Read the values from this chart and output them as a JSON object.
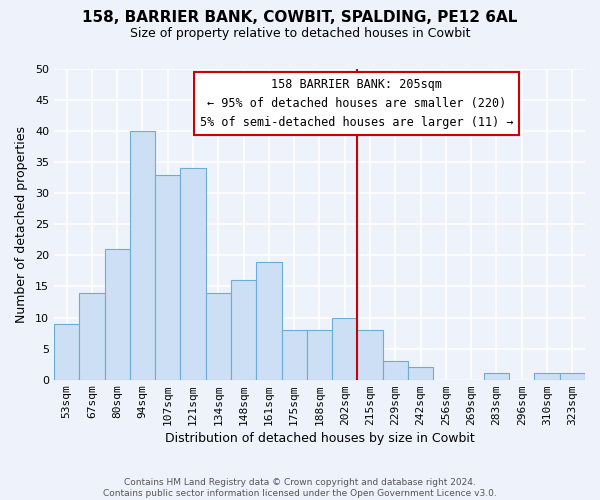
{
  "title1": "158, BARRIER BANK, COWBIT, SPALDING, PE12 6AL",
  "title2": "Size of property relative to detached houses in Cowbit",
  "xlabel": "Distribution of detached houses by size in Cowbit",
  "ylabel": "Number of detached properties",
  "footer1": "Contains HM Land Registry data © Crown copyright and database right 2024.",
  "footer2": "Contains public sector information licensed under the Open Government Licence v3.0.",
  "bar_labels": [
    "53sqm",
    "67sqm",
    "80sqm",
    "94sqm",
    "107sqm",
    "121sqm",
    "134sqm",
    "148sqm",
    "161sqm",
    "175sqm",
    "188sqm",
    "202sqm",
    "215sqm",
    "229sqm",
    "242sqm",
    "256sqm",
    "269sqm",
    "283sqm",
    "296sqm",
    "310sqm",
    "323sqm"
  ],
  "bar_values": [
    9,
    14,
    21,
    40,
    33,
    34,
    14,
    16,
    19,
    8,
    8,
    10,
    8,
    3,
    2,
    0,
    0,
    1,
    0,
    1,
    1
  ],
  "bar_color": "#ccdff5",
  "bar_edge_color": "#6aaed6",
  "vline_x": 11.5,
  "vline_color": "#cc0000",
  "ylim": [
    0,
    50
  ],
  "yticks": [
    0,
    5,
    10,
    15,
    20,
    25,
    30,
    35,
    40,
    45,
    50
  ],
  "annotation_title": "158 BARRIER BANK: 205sqm",
  "annotation_line1": "← 95% of detached houses are smaller (220)",
  "annotation_line2": "5% of semi-detached houses are larger (11) →",
  "annotation_box_facecolor": "white",
  "annotation_box_edgecolor": "#cc0000",
  "background_color": "#eef2fa",
  "grid_color": "white",
  "title1_fontsize": 11,
  "title2_fontsize": 9,
  "axis_label_fontsize": 9,
  "tick_fontsize": 8,
  "annotation_fontsize": 8.5,
  "footer_fontsize": 6.5
}
